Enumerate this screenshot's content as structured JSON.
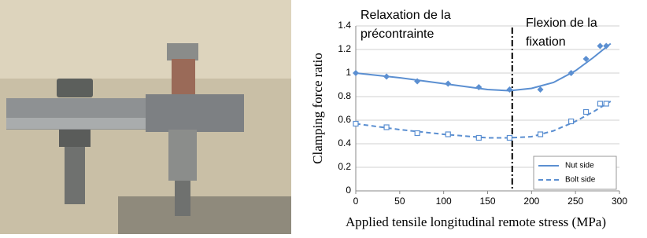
{
  "chart_data": {
    "type": "line",
    "y_label": "Clamping force ratio",
    "x_label": "Applied tensile longitudinal remote stress (MPa)",
    "annotations": [
      [
        "Relaxation de la",
        "précontrainte"
      ],
      [
        "Flexion de la",
        "fixation"
      ]
    ],
    "divider_x": 178,
    "xlim": [
      0,
      300
    ],
    "xticks": [
      0,
      50,
      100,
      150,
      200,
      250,
      300
    ],
    "ylim": [
      0,
      1.4
    ],
    "yticks": [
      0,
      0.2,
      0.4,
      0.6,
      0.8,
      1,
      1.2,
      1.4
    ],
    "grid": true,
    "legend": "lower right",
    "series": [
      {
        "name": "Nut side",
        "color": "#5b8fd1",
        "linestyle": "solid",
        "marker": "diamond",
        "x": [
          0,
          35,
          70,
          105,
          140,
          175,
          210,
          245,
          262,
          278,
          285
        ],
        "values": [
          1.0,
          0.97,
          0.93,
          0.91,
          0.88,
          0.86,
          0.86,
          1.0,
          1.12,
          1.23,
          1.23
        ],
        "fit": {
          "x": [
            0,
            50,
            100,
            150,
            175,
            200,
            225,
            250,
            270,
            290
          ],
          "values": [
            1.0,
            0.96,
            0.91,
            0.86,
            0.85,
            0.87,
            0.92,
            1.02,
            1.13,
            1.25
          ]
        }
      },
      {
        "name": "Bolt side",
        "color": "#5b8fd1",
        "linestyle": "dashed",
        "marker": "square",
        "x": [
          0,
          35,
          70,
          105,
          140,
          175,
          210,
          245,
          262,
          278,
          285
        ],
        "values": [
          0.57,
          0.54,
          0.49,
          0.48,
          0.45,
          0.45,
          0.48,
          0.59,
          0.67,
          0.74,
          0.74
        ],
        "fit": {
          "x": [
            0,
            50,
            100,
            150,
            175,
            200,
            225,
            250,
            270,
            290
          ],
          "values": [
            0.57,
            0.52,
            0.48,
            0.45,
            0.45,
            0.46,
            0.51,
            0.59,
            0.67,
            0.76
          ]
        }
      }
    ]
  }
}
